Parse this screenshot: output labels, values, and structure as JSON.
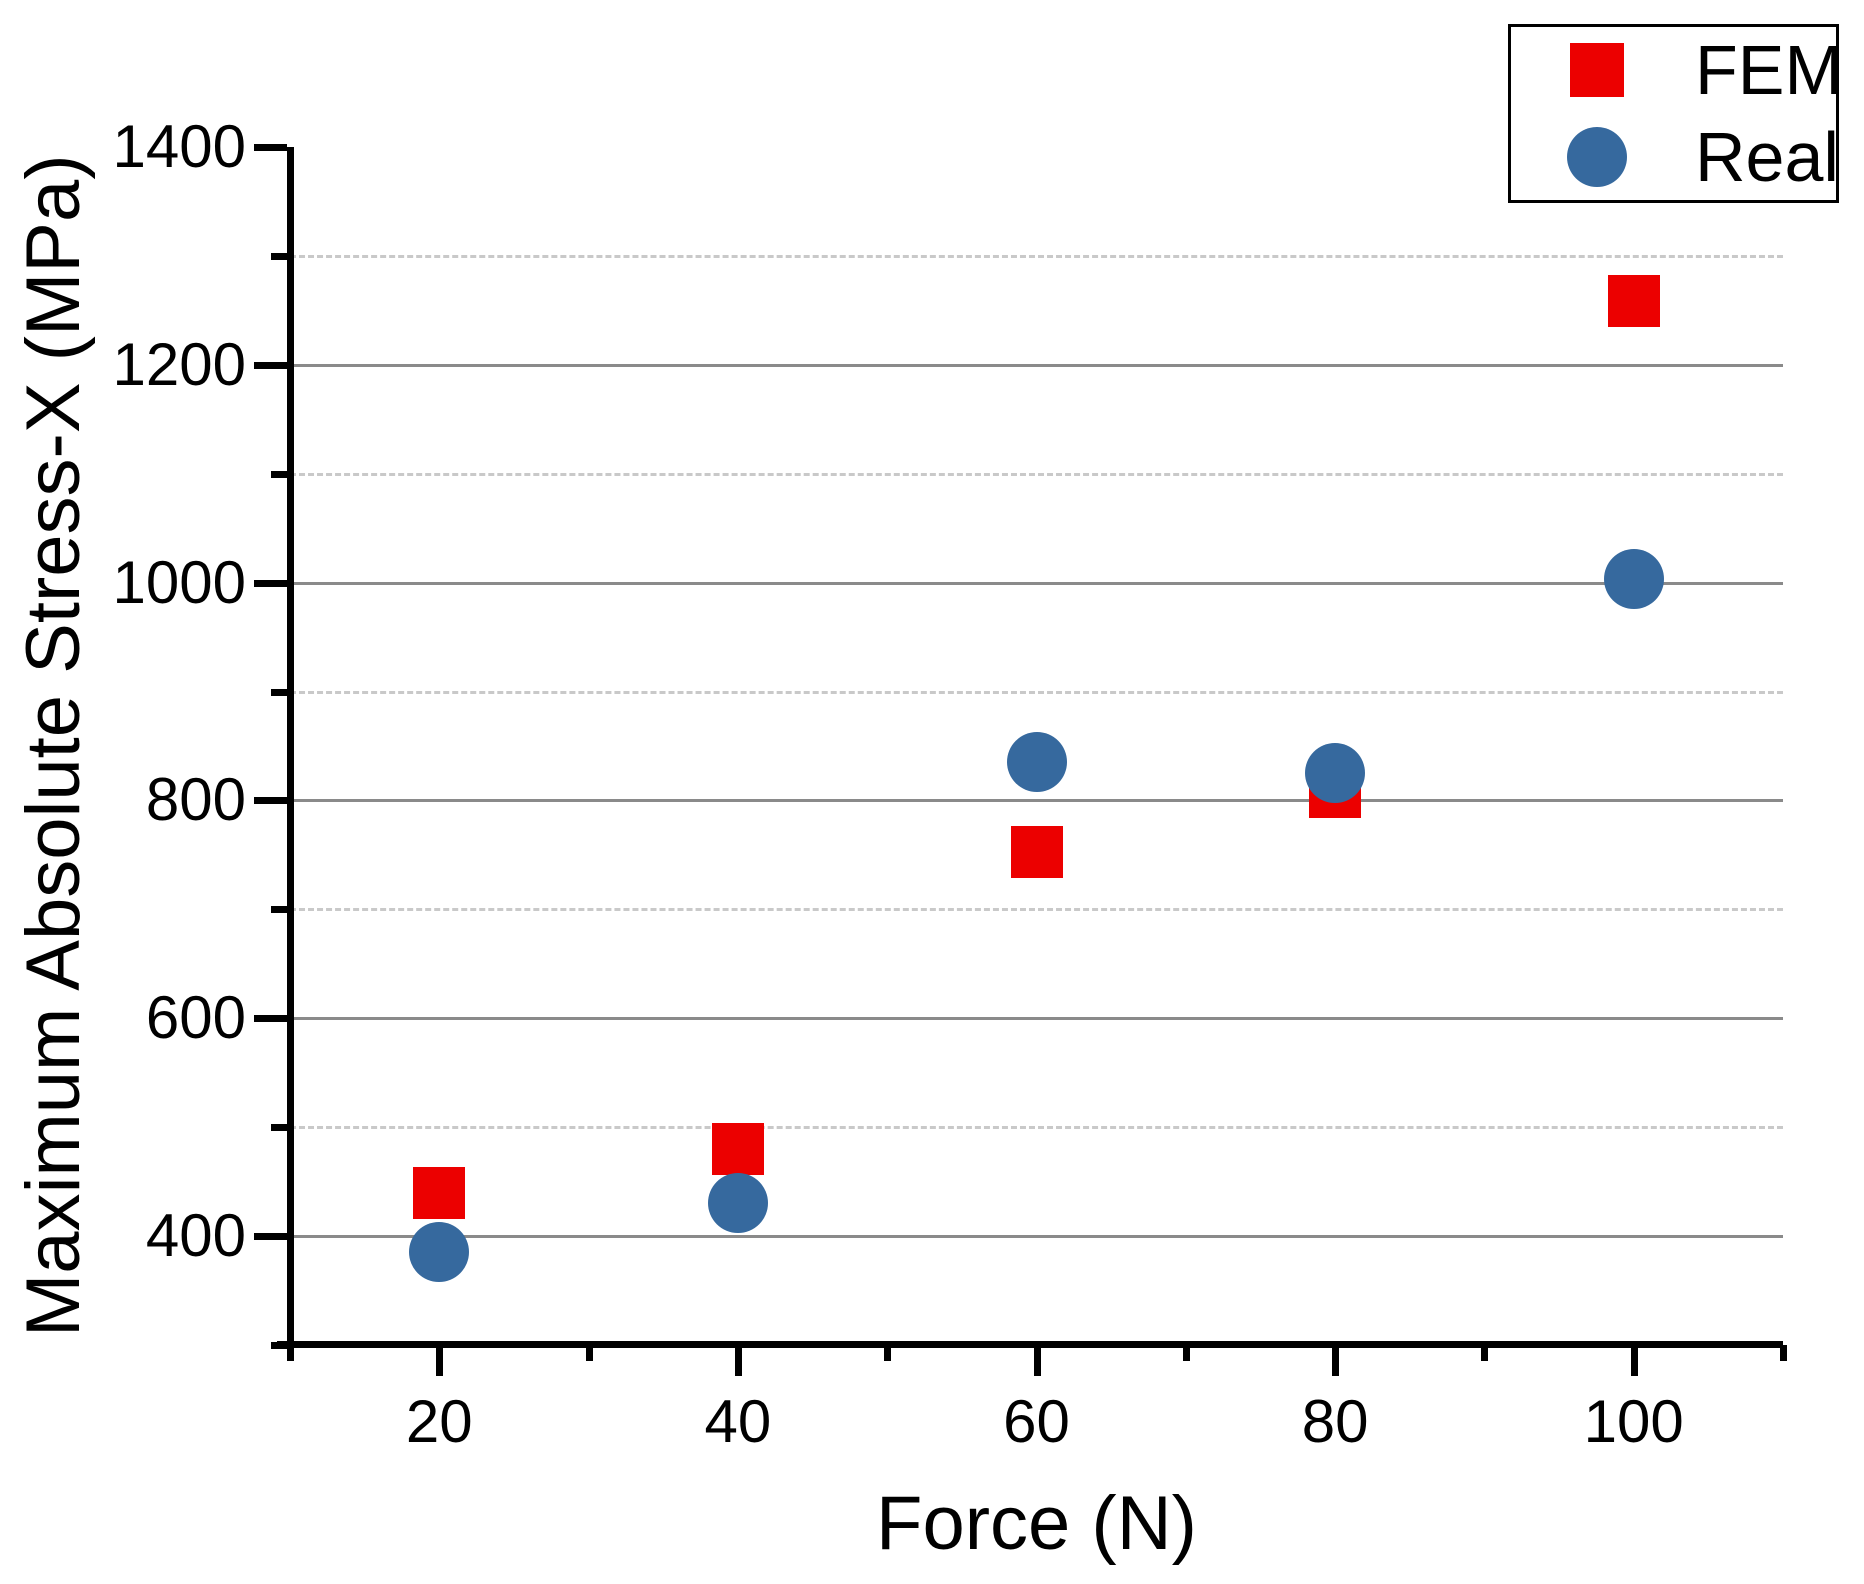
{
  "chart_data": {
    "type": "scatter",
    "title": "",
    "xlabel": "Force (N)",
    "ylabel": "Maximum Absolute Stress-X (MPa)",
    "xlim": [
      10,
      110
    ],
    "ylim": [
      300,
      1400
    ],
    "x_major_ticks": [
      20,
      40,
      60,
      80,
      100
    ],
    "x_minor_ticks": [
      10,
      30,
      50,
      70,
      90,
      110
    ],
    "y_major_ticks": [
      400,
      600,
      800,
      1000,
      1200,
      1400
    ],
    "y_minor_ticks": [
      300,
      500,
      700,
      900,
      1100,
      1300
    ],
    "grid_major_values": [
      400,
      600,
      800,
      1000,
      1200
    ],
    "grid_minor_values": [
      500,
      700,
      900,
      1100,
      1300
    ],
    "grid_major_style": "solid",
    "grid_minor_style": "dashed",
    "grid_major_color": "#8a8a8a",
    "grid_minor_color": "#c9c9c9",
    "axis_color": "#000000",
    "legend_position": "top-right",
    "series": [
      {
        "name": "FEM",
        "marker": "square",
        "color": "#ec0000",
        "x": [
          20,
          40,
          60,
          80,
          100
        ],
        "y": [
          440,
          480,
          753,
          808,
          1259
        ]
      },
      {
        "name": "Real",
        "marker": "circle",
        "color": "#36699e",
        "x": [
          20,
          40,
          60,
          80,
          100
        ],
        "y": [
          385,
          430,
          835,
          825,
          1003
        ]
      }
    ]
  },
  "legend": {
    "items": [
      {
        "label": "FEM"
      },
      {
        "label": "Real"
      }
    ]
  }
}
